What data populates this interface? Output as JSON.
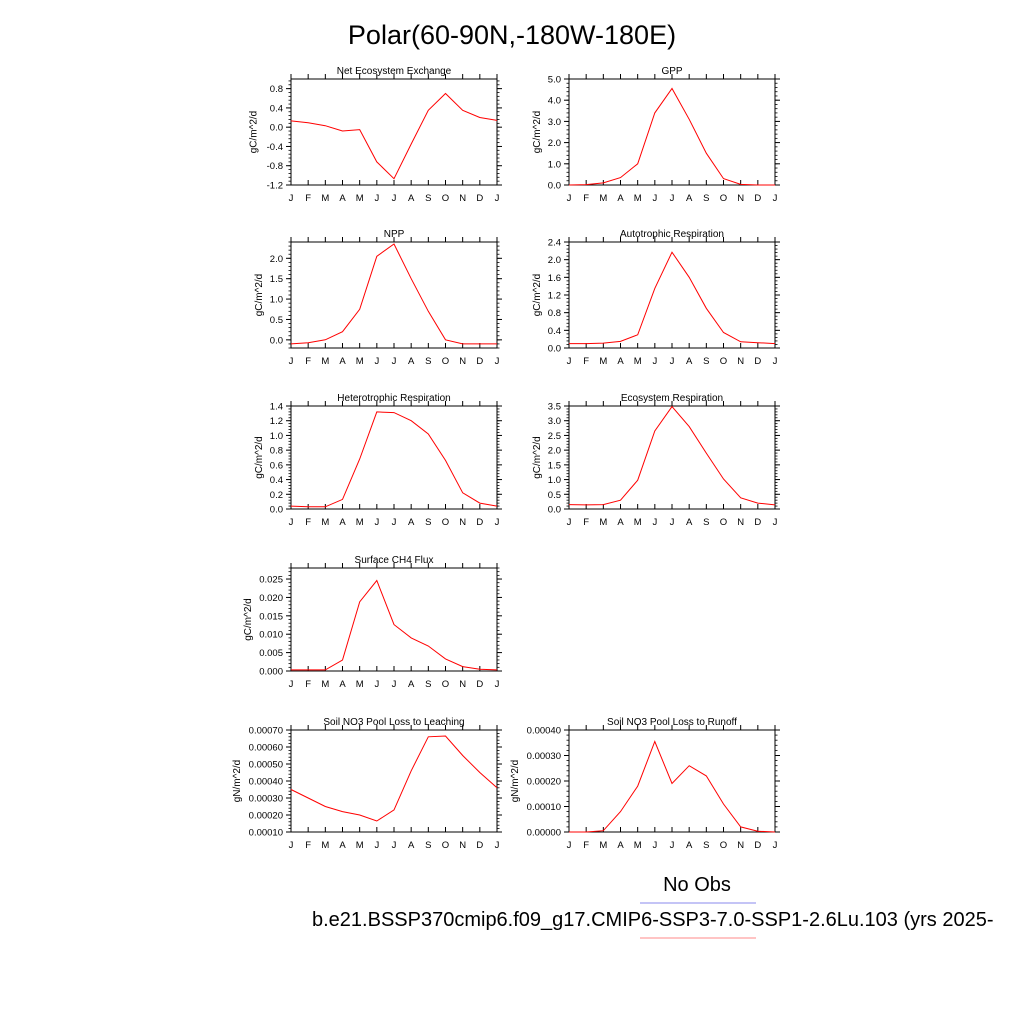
{
  "page": {
    "title": "Polar(60-90N,-180W-180E)",
    "legend": [
      {
        "label": "No Obs",
        "color": "#8888ee"
      },
      {
        "label": "b.e21.BSSP370cmip6.f09_g17.CMIP6-SSP3-7.0-SSP1-2.6Lu.103 (yrs 2025-",
        "color": "#ff0000"
      }
    ]
  },
  "chart_data": [
    {
      "type": "line",
      "title": "Net Ecosystem Exchange",
      "ylabel": "gC/m^2/d",
      "x": [
        "J",
        "F",
        "M",
        "A",
        "M",
        "J",
        "J",
        "A",
        "S",
        "O",
        "N",
        "D",
        "J"
      ],
      "ylim": [
        -1.2,
        1.0
      ],
      "yticks": [
        "-1.2",
        "-0.8",
        "-0.4",
        "0.0",
        "0.4",
        "0.8"
      ],
      "series": [
        {
          "color": "#ff0000",
          "values": [
            0.13,
            0.09,
            0.03,
            -0.08,
            -0.05,
            -0.72,
            -1.07,
            -0.35,
            0.35,
            0.7,
            0.35,
            0.2,
            0.14
          ]
        }
      ]
    },
    {
      "type": "line",
      "title": "GPP",
      "ylabel": "gC/m^2/d",
      "x": [
        "J",
        "F",
        "M",
        "A",
        "M",
        "J",
        "J",
        "A",
        "S",
        "O",
        "N",
        "D",
        "J"
      ],
      "ylim": [
        0.0,
        5.0
      ],
      "yticks": [
        "0.0",
        "1.0",
        "2.0",
        "3.0",
        "4.0",
        "5.0"
      ],
      "series": [
        {
          "color": "#ff0000",
          "values": [
            0.0,
            0.02,
            0.1,
            0.35,
            1.0,
            3.4,
            4.55,
            3.1,
            1.5,
            0.3,
            0.03,
            0.0,
            0.0
          ]
        }
      ]
    },
    {
      "type": "line",
      "title": "NPP",
      "ylabel": "gC/m^2/d",
      "x": [
        "J",
        "F",
        "M",
        "A",
        "M",
        "J",
        "J",
        "A",
        "S",
        "O",
        "N",
        "D",
        "J"
      ],
      "ylim": [
        -0.2,
        2.4
      ],
      "yticks": [
        "0.0",
        "0.5",
        "1.0",
        "1.5",
        "2.0"
      ],
      "series": [
        {
          "color": "#ff0000",
          "values": [
            -0.1,
            -0.07,
            0.0,
            0.2,
            0.75,
            2.05,
            2.35,
            1.5,
            0.7,
            0.0,
            -0.1,
            -0.1,
            -0.1
          ]
        }
      ]
    },
    {
      "type": "line",
      "title": "Autotrophic Respiration",
      "ylabel": "gC/m^2/d",
      "x": [
        "J",
        "F",
        "M",
        "A",
        "M",
        "J",
        "J",
        "A",
        "S",
        "O",
        "N",
        "D",
        "J"
      ],
      "ylim": [
        0.0,
        2.4
      ],
      "yticks": [
        "0.0",
        "0.4",
        "0.8",
        "1.2",
        "1.6",
        "2.0",
        "2.4"
      ],
      "series": [
        {
          "color": "#ff0000",
          "values": [
            0.1,
            0.1,
            0.11,
            0.15,
            0.3,
            1.35,
            2.17,
            1.6,
            0.9,
            0.35,
            0.14,
            0.12,
            0.1
          ]
        }
      ]
    },
    {
      "type": "line",
      "title": "Heterotrophic Respiration",
      "ylabel": "gC/m^2/d",
      "x": [
        "J",
        "F",
        "M",
        "A",
        "M",
        "J",
        "J",
        "A",
        "S",
        "O",
        "N",
        "D",
        "J"
      ],
      "ylim": [
        0.0,
        1.4
      ],
      "yticks": [
        "0.0",
        "0.2",
        "0.4",
        "0.6",
        "0.8",
        "1.0",
        "1.2",
        "1.4"
      ],
      "series": [
        {
          "color": "#ff0000",
          "values": [
            0.04,
            0.03,
            0.03,
            0.13,
            0.68,
            1.32,
            1.31,
            1.2,
            1.02,
            0.66,
            0.22,
            0.08,
            0.04
          ]
        }
      ]
    },
    {
      "type": "line",
      "title": "Ecosystem Respiration",
      "ylabel": "gC/m^2/d",
      "x": [
        "J",
        "F",
        "M",
        "A",
        "M",
        "J",
        "J",
        "A",
        "S",
        "O",
        "N",
        "D",
        "J"
      ],
      "ylim": [
        0.0,
        3.5
      ],
      "yticks": [
        "0.0",
        "0.5",
        "1.0",
        "1.5",
        "2.0",
        "2.5",
        "3.0",
        "3.5"
      ],
      "series": [
        {
          "color": "#ff0000",
          "values": [
            0.15,
            0.14,
            0.15,
            0.3,
            0.98,
            2.65,
            3.48,
            2.8,
            1.9,
            1.02,
            0.38,
            0.2,
            0.14
          ]
        }
      ]
    },
    {
      "type": "line",
      "title": "Surface CH4 Flux",
      "ylabel": "gC/m^2/d",
      "x": [
        "J",
        "F",
        "M",
        "A",
        "M",
        "J",
        "J",
        "A",
        "S",
        "O",
        "N",
        "D",
        "J"
      ],
      "ylim": [
        0.0,
        0.028
      ],
      "yticks": [
        "0.000",
        "0.005",
        "0.010",
        "0.015",
        "0.020",
        "0.025"
      ],
      "series": [
        {
          "color": "#ff0000",
          "values": [
            0.0003,
            0.0003,
            0.0003,
            0.003,
            0.0188,
            0.0246,
            0.0126,
            0.009,
            0.0068,
            0.0033,
            0.0012,
            0.0005,
            0.0003
          ]
        }
      ]
    },
    {
      "type": "line",
      "title": "Soil NO3 Pool Loss to Leaching",
      "ylabel": "gN/m^2/d",
      "x": [
        "J",
        "F",
        "M",
        "A",
        "M",
        "J",
        "J",
        "A",
        "S",
        "O",
        "N",
        "D",
        "J"
      ],
      "ylim": [
        0.0001,
        0.0007
      ],
      "yticks": [
        "0.00010",
        "0.00020",
        "0.00030",
        "0.00040",
        "0.00050",
        "0.00060",
        "0.00070"
      ],
      "series": [
        {
          "color": "#ff0000",
          "values": [
            0.00035,
            0.0003,
            0.00025,
            0.00022,
            0.0002,
            0.000165,
            0.00023,
            0.00046,
            0.00066,
            0.000665,
            0.00055,
            0.00045,
            0.00036
          ]
        }
      ]
    },
    {
      "type": "line",
      "title": "Soil NO3 Pool Loss to Runoff",
      "ylabel": "gN/m^2/d",
      "x": [
        "J",
        "F",
        "M",
        "A",
        "M",
        "J",
        "J",
        "A",
        "S",
        "O",
        "N",
        "D",
        "J"
      ],
      "ylim": [
        0.0,
        0.0004
      ],
      "yticks": [
        "0.00000",
        "0.00010",
        "0.00020",
        "0.00030",
        "0.00040"
      ],
      "series": [
        {
          "color": "#ff0000",
          "values": [
            0.0,
            0.0,
            5e-06,
            8e-05,
            0.00018,
            0.000355,
            0.00019,
            0.00026,
            0.00022,
            0.00011,
            2e-05,
            3e-06,
            0.0
          ]
        }
      ]
    }
  ]
}
